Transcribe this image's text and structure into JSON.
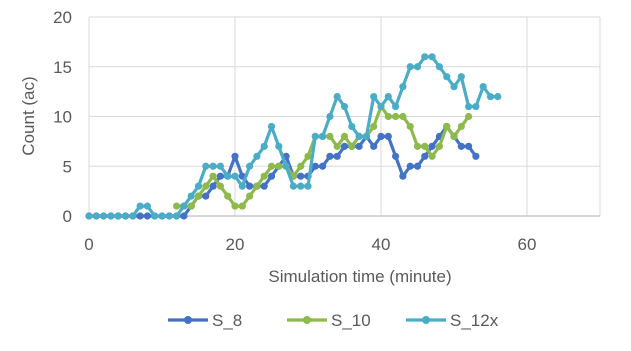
{
  "chart_data": {
    "type": "line",
    "title": "",
    "xlabel": "Simulation time (minute)",
    "ylabel": "Count (ac)",
    "xlim": [
      0,
      70
    ],
    "ylim": [
      0,
      20
    ],
    "xticks": [
      "0",
      "20",
      "40",
      "60"
    ],
    "yticks": [
      "0",
      "5",
      "10",
      "15",
      "20"
    ],
    "grid": true,
    "legend_position": "bottom",
    "series": [
      {
        "name": "S_8",
        "color": "#4472c4",
        "x": [
          0,
          1,
          2,
          3,
          4,
          5,
          6,
          7,
          8,
          9,
          10,
          11,
          12,
          13,
          14,
          15,
          16,
          17,
          18,
          19,
          20,
          21,
          22,
          23,
          24,
          25,
          26,
          27,
          28,
          29,
          30,
          31,
          32,
          33,
          34,
          35,
          36,
          37,
          38,
          39,
          40,
          41,
          42,
          43,
          44,
          45,
          46,
          47,
          48,
          49,
          50,
          51,
          52,
          53
        ],
        "y": [
          0,
          0,
          0,
          0,
          0,
          0,
          0,
          0,
          0,
          0,
          0,
          0,
          0,
          0,
          1,
          2,
          2,
          3,
          4,
          4,
          6,
          4,
          3,
          3,
          3,
          4,
          5,
          6,
          4,
          4,
          4,
          5,
          5,
          6,
          6,
          7,
          7,
          7,
          8,
          7,
          8,
          8,
          6,
          4,
          5,
          5,
          6,
          7,
          8,
          9,
          8,
          7,
          7,
          6
        ]
      },
      {
        "name": "S_10",
        "color": "#8db94d",
        "x": [
          12,
          13,
          14,
          15,
          16,
          17,
          18,
          19,
          20,
          21,
          22,
          23,
          24,
          25,
          26,
          27,
          28,
          29,
          30,
          31,
          32,
          33,
          34,
          35,
          36,
          37,
          38,
          39,
          40,
          41,
          42,
          43,
          44,
          45,
          46,
          47,
          48,
          49,
          50,
          51,
          52
        ],
        "y": [
          1,
          1,
          1,
          2,
          3,
          4,
          3,
          2,
          1,
          1,
          2,
          3,
          4,
          5,
          5,
          5,
          4,
          5,
          6,
          8,
          8,
          8,
          7,
          8,
          7,
          8,
          8,
          9,
          11,
          10,
          10,
          10,
          9,
          7,
          7,
          6,
          7,
          9,
          8,
          9,
          10
        ]
      },
      {
        "name": "S_12x",
        "color": "#4bacc6",
        "x": [
          0,
          1,
          2,
          3,
          4,
          5,
          6,
          7,
          8,
          9,
          10,
          11,
          12,
          13,
          14,
          15,
          16,
          17,
          18,
          19,
          20,
          21,
          22,
          23,
          24,
          25,
          26,
          27,
          28,
          29,
          30,
          31,
          32,
          33,
          34,
          35,
          36,
          37,
          38,
          39,
          40,
          41,
          42,
          43,
          44,
          45,
          46,
          47,
          48,
          49,
          50,
          51,
          52,
          53,
          54,
          55,
          56
        ],
        "y": [
          0,
          0,
          0,
          0,
          0,
          0,
          0,
          1,
          1,
          0,
          0,
          0,
          0,
          1,
          2,
          3,
          5,
          5,
          5,
          4,
          4,
          3,
          5,
          6,
          7,
          9,
          7,
          5,
          3,
          3,
          3,
          8,
          8,
          10,
          12,
          11,
          9,
          8,
          8,
          12,
          11,
          12,
          11,
          13,
          15,
          15,
          16,
          16,
          15,
          14,
          13,
          14,
          11,
          11,
          13,
          12,
          12
        ]
      }
    ]
  }
}
